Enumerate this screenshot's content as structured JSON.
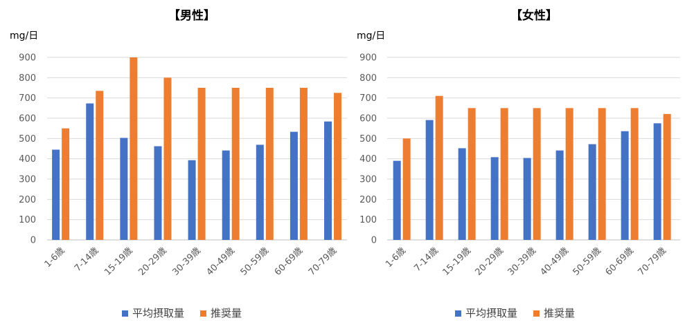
{
  "chart_data": [
    {
      "type": "bar",
      "title": "【男性】",
      "ylabel": "mg/日",
      "ylim": [
        0,
        900
      ],
      "yticks": [
        0,
        100,
        200,
        300,
        400,
        500,
        600,
        700,
        800,
        900
      ],
      "categories": [
        "1-6歳",
        "7-14歳",
        "15-19歳",
        "20-29歳",
        "30-39歳",
        "40-49歳",
        "50-59歳",
        "60-69歳",
        "70-79歳"
      ],
      "series": [
        {
          "name": "平均摂取量",
          "color": "#4472c4",
          "values": [
            445,
            673,
            503,
            462,
            393,
            441,
            469,
            533,
            584
          ]
        },
        {
          "name": "推奨量",
          "color": "#ed7d31",
          "values": [
            550,
            735,
            900,
            800,
            750,
            750,
            750,
            750,
            725
          ]
        }
      ],
      "legend": "bottom"
    },
    {
      "type": "bar",
      "title": "【女性】",
      "ylabel": "mg/日",
      "ylim": [
        0,
        900
      ],
      "yticks": [
        0,
        100,
        200,
        300,
        400,
        500,
        600,
        700,
        800,
        900
      ],
      "categories": [
        "1-6歳",
        "7-14歳",
        "15-19歳",
        "20-29歳",
        "30-39歳",
        "40-49歳",
        "50-59歳",
        "60-69歳",
        "70-79歳"
      ],
      "series": [
        {
          "name": "平均摂取量",
          "color": "#4472c4",
          "values": [
            390,
            591,
            452,
            408,
            404,
            441,
            472,
            536,
            575
          ]
        },
        {
          "name": "推奨量",
          "color": "#ed7d31",
          "values": [
            500,
            710,
            650,
            650,
            650,
            650,
            650,
            650,
            621
          ]
        }
      ],
      "legend": "bottom"
    }
  ]
}
